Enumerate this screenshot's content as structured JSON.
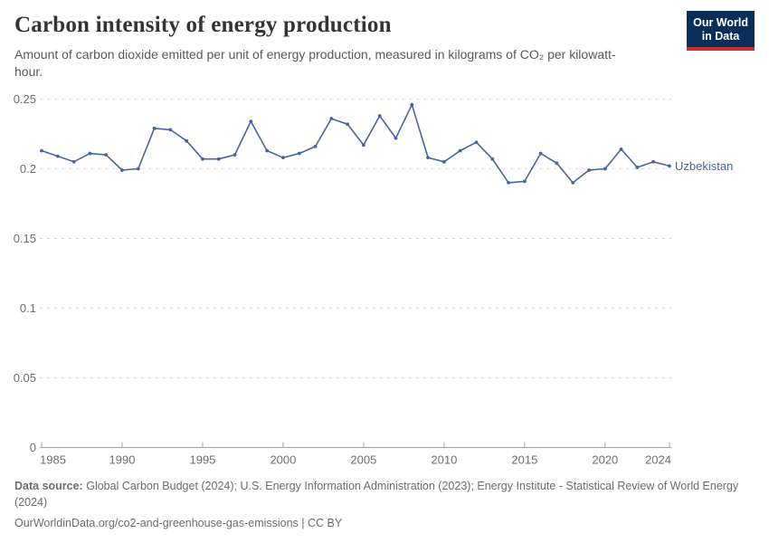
{
  "header": {
    "title": "Carbon intensity of energy production",
    "subtitle": "Amount of carbon dioxide emitted per unit of energy production, measured in kilograms of CO₂ per kilowatt-hour.",
    "logo_line1": "Our World",
    "logo_line2": "in Data"
  },
  "colors": {
    "series": "#4664a5",
    "gridline": "#dcdcdc",
    "axis": "#a3a3a3",
    "tick_label": "#6e6e6e",
    "logo_bg": "#0a2d5a",
    "logo_accent": "#c82d37"
  },
  "chart_data": {
    "type": "line",
    "title": "Carbon intensity of energy production",
    "xlabel": "",
    "ylabel": "",
    "xlim": [
      1985,
      2024
    ],
    "ylim": [
      0,
      0.25
    ],
    "yticks": [
      0,
      0.05,
      0.1,
      0.15,
      0.2,
      0.25
    ],
    "ytick_labels": [
      "0",
      "0.05",
      "0.1",
      "0.15",
      "0.2",
      "0.25"
    ],
    "xticks": [
      1985,
      1990,
      1995,
      2000,
      2005,
      2010,
      2015,
      2020,
      2024
    ],
    "grid": "horizontal-dashed",
    "legend_position": "end-of-line-label",
    "x": [
      1985,
      1986,
      1987,
      1988,
      1989,
      1990,
      1991,
      1992,
      1993,
      1994,
      1995,
      1996,
      1997,
      1998,
      1999,
      2000,
      2001,
      2002,
      2003,
      2004,
      2005,
      2006,
      2007,
      2008,
      2009,
      2010,
      2011,
      2012,
      2013,
      2014,
      2015,
      2016,
      2017,
      2018,
      2019,
      2020,
      2021,
      2022,
      2023,
      2024
    ],
    "series": [
      {
        "name": "Uzbekistan",
        "color": "#4664a5",
        "values": [
          0.213,
          0.209,
          0.205,
          0.211,
          0.21,
          0.199,
          0.2,
          0.229,
          0.228,
          0.22,
          0.207,
          0.207,
          0.21,
          0.234,
          0.213,
          0.208,
          0.211,
          0.216,
          0.236,
          0.232,
          0.217,
          0.238,
          0.222,
          0.246,
          0.208,
          0.205,
          0.213,
          0.219,
          0.207,
          0.19,
          0.191,
          0.211,
          0.204,
          0.19,
          0.199,
          0.2,
          0.214,
          0.201,
          0.205,
          0.202
        ]
      }
    ]
  },
  "footer": {
    "data_source_label": "Data source:",
    "data_source_text": "Global Carbon Budget (2024); U.S. Energy Information Administration (2023); Energy Institute - Statistical Review of World Energy (2024)",
    "license_line": "OurWorldinData.org/co2-and-greenhouse-gas-emissions | CC BY"
  }
}
